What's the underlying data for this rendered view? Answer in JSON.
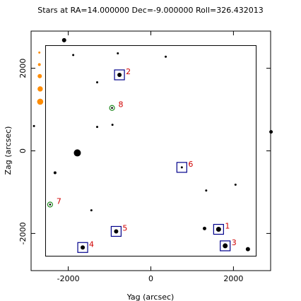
{
  "chart_data": {
    "type": "scatter",
    "title": "Stars at RA=14.000000 Dec=-9.000000 Roll=326.432013",
    "xlabel": "Yag (arcsec)",
    "ylabel": "Zag (arcsec)",
    "xlim": [
      -2900,
      2900
    ],
    "ylim": [
      -2900,
      2900
    ],
    "xticks": [
      -2000,
      0,
      2000
    ],
    "yticks": [
      -2000,
      0,
      2000
    ],
    "grid": false,
    "field_box": {
      "x": [
        -2550,
        2550
      ],
      "y": [
        -2550,
        2550
      ]
    },
    "colors": {
      "star": "#000000",
      "box": "#00008b",
      "callout": "#d00000",
      "acq_marker": "#228b22",
      "edge_star": "#ff8c00"
    },
    "stars": [
      {
        "x": -2100,
        "y": 2680,
        "mag": 9.5
      },
      {
        "x": -1880,
        "y": 2320,
        "mag": 11
      },
      {
        "x": -800,
        "y": 2360,
        "mag": 11
      },
      {
        "x": 360,
        "y": 2280,
        "mag": 11
      },
      {
        "x": -1300,
        "y": 1660,
        "mag": 11
      },
      {
        "x": -2830,
        "y": 600,
        "mag": 11
      },
      {
        "x": -1300,
        "y": 580,
        "mag": 11
      },
      {
        "x": -930,
        "y": 630,
        "mag": 11
      },
      {
        "x": -1780,
        "y": -50,
        "mag": 6.5
      },
      {
        "x": -2320,
        "y": -530,
        "mag": 10.5
      },
      {
        "x": -1440,
        "y": -1440,
        "mag": 11
      },
      {
        "x": 1340,
        "y": -960,
        "mag": 11
      },
      {
        "x": 2050,
        "y": -820,
        "mag": 11
      },
      {
        "x": 1300,
        "y": -1880,
        "mag": 10
      },
      {
        "x": 2350,
        "y": -2380,
        "mag": 9.5
      },
      {
        "x": 2910,
        "y": 460,
        "mag": 10
      }
    ],
    "edge_stars": [
      {
        "x": -2700,
        "y": 2380,
        "mag": 11
      },
      {
        "x": -2700,
        "y": 2090,
        "mag": 10.5
      },
      {
        "x": -2690,
        "y": 1810,
        "mag": 9.5
      },
      {
        "x": -2680,
        "y": 1500,
        "mag": 8.8
      },
      {
        "x": -2680,
        "y": 1190,
        "mag": 8.2
      }
    ],
    "guide_stars": [
      {
        "id": "1",
        "x": 1640,
        "y": -1900,
        "mag": 9
      },
      {
        "id": "2",
        "x": -760,
        "y": 1840,
        "mag": 9.5
      },
      {
        "id": "3",
        "x": 1800,
        "y": -2300,
        "mag": 9
      },
      {
        "id": "4",
        "x": -1650,
        "y": -2340,
        "mag": 9.5
      },
      {
        "id": "5",
        "x": -840,
        "y": -1950,
        "mag": 9.5
      },
      {
        "id": "6",
        "x": 750,
        "y": -400,
        "mag": 11
      }
    ],
    "acq_stars": [
      {
        "id": "8",
        "x": -940,
        "y": 1040
      },
      {
        "id": "7",
        "x": -2440,
        "y": -1300
      }
    ]
  }
}
